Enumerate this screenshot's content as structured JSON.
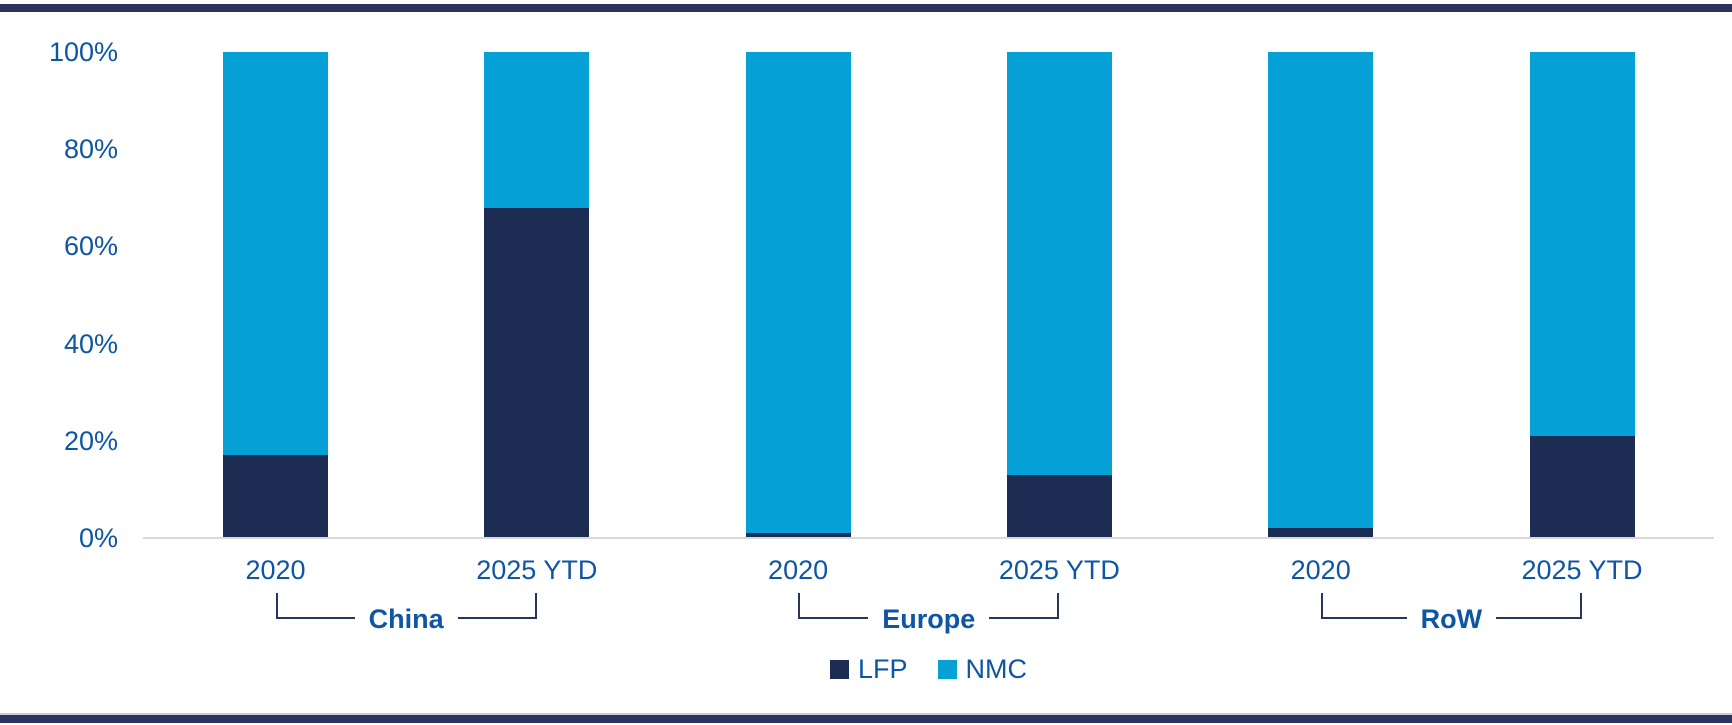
{
  "chart_data": {
    "type": "bar",
    "stacked": true,
    "unit": "%",
    "orientation": "vertical",
    "grid": false,
    "legend_position": "bottom",
    "ylim": [
      0,
      100
    ],
    "y_ticks": [
      0,
      20,
      40,
      60,
      80,
      100
    ],
    "y_tick_labels": [
      "0%",
      "20%",
      "40%",
      "60%",
      "80%",
      "100%"
    ],
    "group_labels": [
      "China",
      "Europe",
      "RoW"
    ],
    "categories": [
      "2020",
      "2025 YTD",
      "2020",
      "2025 YTD",
      "2020",
      "2025 YTD"
    ],
    "series": [
      {
        "name": "LFP",
        "color": "#1d2c52",
        "values": [
          17,
          68,
          1,
          13,
          2,
          21
        ]
      },
      {
        "name": "NMC",
        "color": "#04a0d6",
        "values": [
          83,
          32,
          99,
          87,
          98,
          79
        ]
      }
    ]
  },
  "legend": {
    "items": [
      {
        "label": "LFP",
        "color": "#1d2c52"
      },
      {
        "label": "NMC",
        "color": "#04a0d6"
      }
    ]
  },
  "colors": {
    "text_blue": "#0e55a4",
    "bracket_line": "#29355e",
    "page_border": "#29355e",
    "axis_line": "#d9d9d9",
    "lfp": "#1d2c52",
    "nmc": "#04a0d6"
  }
}
